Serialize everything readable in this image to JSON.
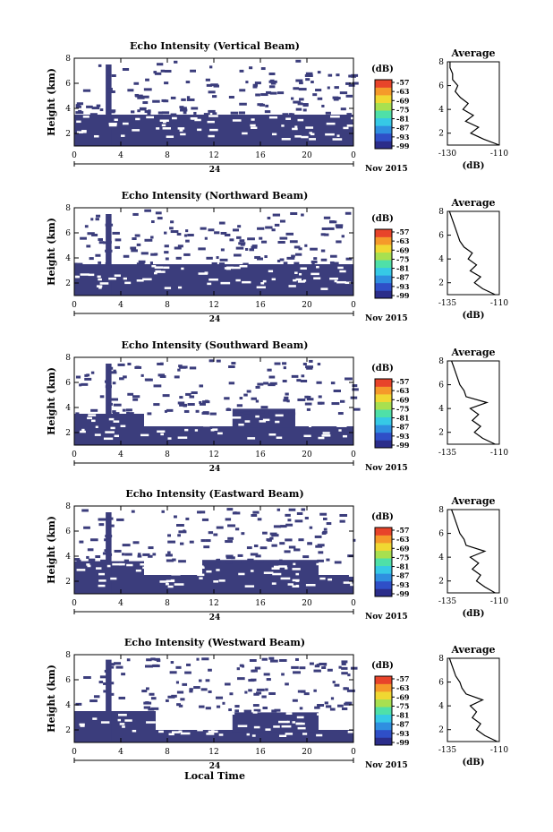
{
  "chart_data": [
    {
      "type": "heatmap",
      "title": "Echo Intensity (Vertical Beam)",
      "ylabel": "Height (km)",
      "xticks": [
        "0",
        "4",
        "8",
        "12",
        "16",
        "20",
        "0"
      ],
      "xrange": [
        0,
        24
      ],
      "yticks": [
        "2",
        "4",
        "6",
        "8"
      ],
      "ylim": [
        1,
        8
      ],
      "date_label": "24",
      "month_label": "Nov 2015",
      "colorbar": {
        "unit": "(dB)",
        "ticks": [
          "-57",
          "-63",
          "-69",
          "-75",
          "-81",
          "-87",
          "-93",
          "-99"
        ]
      },
      "echo_layers": [
        {
          "from_h": 0.0,
          "to_h": 24.0,
          "bottom_km": 1.0,
          "top_km": 3.5
        },
        {
          "from_h": 2.7,
          "to_h": 3.2,
          "bottom_km": 1.0,
          "top_km": 7.5
        }
      ],
      "average_profile": {
        "title": "Average",
        "xlabel": "(dB)",
        "xticks": [
          "-130",
          "-110"
        ],
        "xlim": [
          -130,
          -110
        ],
        "yticks": [
          "2",
          "4",
          "6",
          "8"
        ],
        "height_km": [
          1.0,
          1.5,
          2.0,
          2.5,
          3.0,
          3.5,
          4.0,
          4.5,
          5.0,
          5.5,
          6.0,
          6.5,
          7.0,
          7.5,
          8.0
        ],
        "values_db": [
          -110,
          -116,
          -121,
          -118,
          -123,
          -120,
          -124,
          -122,
          -125,
          -127,
          -126,
          -128,
          -128,
          -129,
          -129
        ]
      }
    },
    {
      "type": "heatmap",
      "title": "Echo Intensity (Northward Beam)",
      "ylabel": "Height (km)",
      "xticks": [
        "0",
        "4",
        "8",
        "12",
        "16",
        "20",
        "0"
      ],
      "xrange": [
        0,
        24
      ],
      "yticks": [
        "2",
        "4",
        "6",
        "8"
      ],
      "ylim": [
        1,
        8
      ],
      "date_label": "24",
      "month_label": "Nov 2015",
      "colorbar": {
        "unit": "(dB)",
        "ticks": [
          "-57",
          "-63",
          "-69",
          "-75",
          "-81",
          "-87",
          "-93",
          "-99"
        ]
      },
      "echo_layers": [
        {
          "from_h": 0.0,
          "to_h": 24.0,
          "bottom_km": 1.0,
          "top_km": 3.5
        },
        {
          "from_h": 2.7,
          "to_h": 3.2,
          "bottom_km": 1.0,
          "top_km": 7.5
        }
      ],
      "average_profile": {
        "title": "Average",
        "xlabel": "(dB)",
        "xticks": [
          "-135",
          "-110"
        ],
        "xlim": [
          -135,
          -110
        ],
        "yticks": [
          "2",
          "4",
          "6",
          "8"
        ],
        "height_km": [
          1.0,
          1.5,
          2.0,
          2.5,
          3.0,
          3.5,
          4.0,
          4.5,
          5.0,
          5.5,
          6.0,
          6.5,
          7.0,
          7.5,
          8.0
        ],
        "values_db": [
          -112,
          -118,
          -122,
          -119,
          -124,
          -121,
          -125,
          -123,
          -127,
          -129,
          -130,
          -131,
          -132,
          -133,
          -134
        ]
      }
    },
    {
      "type": "heatmap",
      "title": "Echo Intensity (Southward Beam)",
      "ylabel": "Height (km)",
      "xticks": [
        "0",
        "4",
        "8",
        "12",
        "16",
        "20",
        "0"
      ],
      "xrange": [
        0,
        24
      ],
      "yticks": [
        "2",
        "4",
        "6",
        "8"
      ],
      "ylim": [
        1,
        8
      ],
      "date_label": "24",
      "month_label": "Nov 2015",
      "colorbar": {
        "unit": "(dB)",
        "ticks": [
          "-57",
          "-63",
          "-69",
          "-75",
          "-81",
          "-87",
          "-93",
          "-99"
        ]
      },
      "echo_layers": [
        {
          "from_h": 0.0,
          "to_h": 24.0,
          "bottom_km": 1.0,
          "top_km": 2.5
        },
        {
          "from_h": 0.0,
          "to_h": 6.0,
          "bottom_km": 1.0,
          "top_km": 3.5
        },
        {
          "from_h": 13.6,
          "to_h": 19.0,
          "bottom_km": 2.4,
          "top_km": 3.9
        },
        {
          "from_h": 2.7,
          "to_h": 3.2,
          "bottom_km": 1.0,
          "top_km": 7.5
        }
      ],
      "average_profile": {
        "title": "Average",
        "xlabel": "",
        "xticks": [
          "-135",
          "-110"
        ],
        "xlim": [
          -135,
          -110
        ],
        "yticks": [
          "2",
          "4",
          "6",
          "8"
        ],
        "height_km": [
          1.0,
          1.5,
          2.0,
          2.5,
          3.0,
          3.5,
          4.0,
          4.5,
          5.0,
          5.5,
          6.0,
          6.5,
          7.0,
          7.5,
          8.0
        ],
        "values_db": [
          -112,
          -118,
          -122,
          -119,
          -123,
          -120,
          -124,
          -116,
          -126,
          -127,
          -129,
          -130,
          -131,
          -132,
          -133
        ]
      }
    },
    {
      "type": "heatmap",
      "title": "Echo Intensity (Eastward Beam)",
      "ylabel": "Height (km)",
      "xticks": [
        "0",
        "4",
        "8",
        "12",
        "16",
        "20",
        "0"
      ],
      "xrange": [
        0,
        24
      ],
      "yticks": [
        "2",
        "4",
        "6",
        "8"
      ],
      "ylim": [
        1,
        8
      ],
      "date_label": "24",
      "month_label": "Nov 2015",
      "colorbar": {
        "unit": "(dB)",
        "ticks": [
          "-57",
          "-63",
          "-69",
          "-75",
          "-81",
          "-87",
          "-93",
          "-99"
        ]
      },
      "echo_layers": [
        {
          "from_h": 0.0,
          "to_h": 24.0,
          "bottom_km": 1.0,
          "top_km": 2.5
        },
        {
          "from_h": 0.0,
          "to_h": 6.0,
          "bottom_km": 1.0,
          "top_km": 3.6
        },
        {
          "from_h": 11.0,
          "to_h": 21.0,
          "bottom_km": 1.0,
          "top_km": 3.7
        },
        {
          "from_h": 2.7,
          "to_h": 3.2,
          "bottom_km": 1.0,
          "top_km": 7.5
        }
      ],
      "average_profile": {
        "title": "Average",
        "xlabel": "(dB)",
        "xticks": [
          "-135",
          "-110"
        ],
        "xlim": [
          -135,
          -110
        ],
        "yticks": [
          "2",
          "4",
          "6",
          "8"
        ],
        "height_km": [
          1.0,
          1.5,
          2.0,
          2.5,
          3.0,
          3.5,
          4.0,
          4.5,
          5.0,
          5.5,
          6.0,
          6.5,
          7.0,
          7.5,
          8.0
        ],
        "values_db": [
          -112,
          -117,
          -121,
          -119,
          -123,
          -120,
          -124,
          -117,
          -126,
          -127,
          -129,
          -130,
          -131,
          -132,
          -133
        ]
      }
    },
    {
      "type": "heatmap",
      "title": "Echo Intensity (Westward Beam)",
      "ylabel": "Height (km)",
      "xlabel": "Local Time",
      "xticks": [
        "0",
        "4",
        "8",
        "12",
        "16",
        "20",
        "0"
      ],
      "xrange": [
        0,
        24
      ],
      "yticks": [
        "2",
        "4",
        "6",
        "8"
      ],
      "ylim": [
        1,
        8
      ],
      "date_label": "24",
      "month_label": "Nov 2015",
      "colorbar": {
        "unit": "(dB)",
        "ticks": [
          "-57",
          "-63",
          "-69",
          "-75",
          "-81",
          "-87",
          "-93",
          "-99"
        ]
      },
      "echo_layers": [
        {
          "from_h": 0.0,
          "to_h": 24.0,
          "bottom_km": 1.0,
          "top_km": 2.0
        },
        {
          "from_h": 0.0,
          "to_h": 7.0,
          "bottom_km": 1.0,
          "top_km": 3.5
        },
        {
          "from_h": 13.6,
          "to_h": 21.0,
          "bottom_km": 1.8,
          "top_km": 3.4
        },
        {
          "from_h": 2.7,
          "to_h": 3.2,
          "bottom_km": 1.0,
          "top_km": 7.6
        }
      ],
      "average_profile": {
        "title": "Average",
        "xlabel": "(dB)",
        "xticks": [
          "-135",
          "-110"
        ],
        "xlim": [
          -135,
          -110
        ],
        "yticks": [
          "2",
          "4",
          "6",
          "8"
        ],
        "height_km": [
          1.0,
          1.5,
          2.0,
          2.5,
          3.0,
          3.5,
          4.0,
          4.5,
          5.0,
          5.5,
          6.0,
          6.5,
          7.0,
          7.5,
          8.0
        ],
        "values_db": [
          -111,
          -117,
          -121,
          -119,
          -123,
          -121,
          -124,
          -118,
          -126,
          -128,
          -129,
          -131,
          -132,
          -133,
          -134
        ]
      }
    }
  ],
  "colors": {
    "echo": "#3b3d7c",
    "colorbar": [
      "#2b2d8a",
      "#2f4fc7",
      "#2f8fe0",
      "#36c9e6",
      "#4fe0a8",
      "#a8e050",
      "#f0d832",
      "#f59a2a",
      "#e8442a"
    ]
  }
}
